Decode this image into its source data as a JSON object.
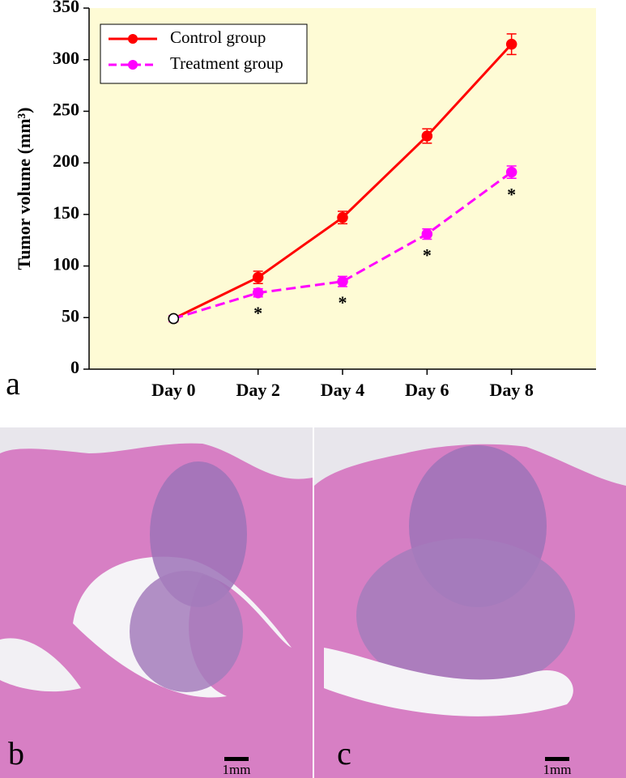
{
  "chart_data": {
    "type": "line",
    "y_label": "Tumor volume (mm³)",
    "categories": [
      "Day 0",
      "Day 2",
      "Day 4",
      "Day 6",
      "Day 8"
    ],
    "series": [
      {
        "name": "Control group",
        "color": "#ff0000",
        "dash": false,
        "values": [
          49,
          89,
          147,
          226,
          315
        ],
        "errors": [
          3,
          6,
          6,
          7,
          10
        ]
      },
      {
        "name": "Treatment group",
        "color": "#ff00ff",
        "dash": true,
        "values": [
          49,
          74,
          85,
          131,
          191
        ],
        "errors": [
          3,
          4,
          5,
          5,
          6
        ]
      }
    ],
    "significance_markers": [
      null,
      "*",
      "*",
      "*",
      "*"
    ],
    "ylim": [
      0,
      350
    ],
    "yticks": [
      0,
      50,
      100,
      150,
      200,
      250,
      300,
      350
    ],
    "legend": "upper left"
  },
  "panels": [
    "a",
    "b",
    "c"
  ],
  "scale_bars": [
    "1mm",
    "1mm"
  ]
}
